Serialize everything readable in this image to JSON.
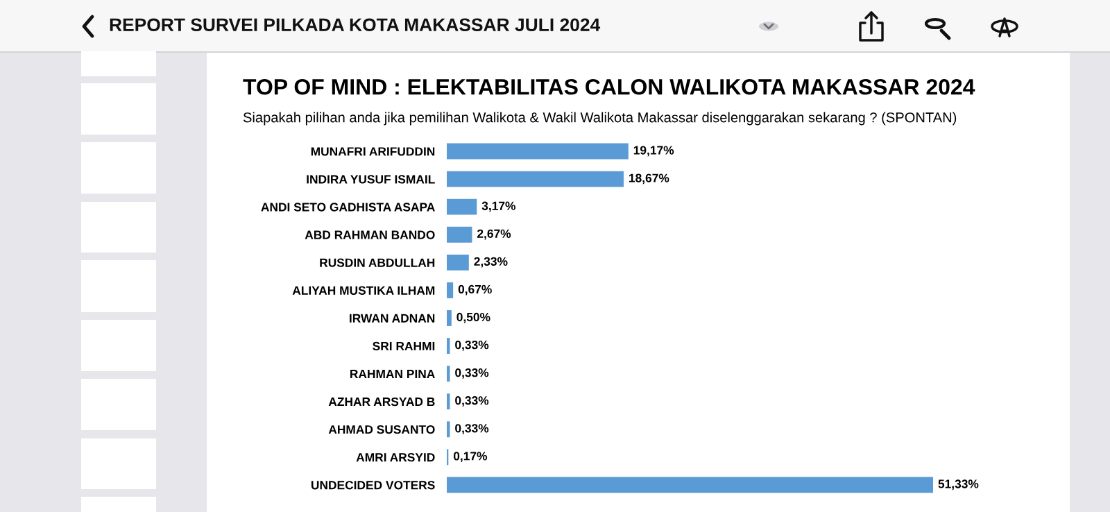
{
  "chart_data": {
    "type": "bar",
    "orientation": "horizontal",
    "title": "TOP OF MIND : ELEKTABILITAS CALON WALIKOTA MAKASSAR 2024",
    "subtitle": "Siapakah pilihan anda jika pemilihan Walikota & Wakil Walikota Makassar diselenggarakan sekarang ? (SPONTAN)",
    "annotations": [
      "REPORT SURVEI PILKADA KOTA MAKASSAR JULI 2024"
    ],
    "categories": [
      "MUNAFRI ARIFUDDIN",
      "INDIRA YUSUF ISMAIL",
      "ANDI SETO GADHISTA ASAPA",
      "ABD RAHMAN BANDO",
      "RUSDIN ABDULLAH",
      "ALIYAH MUSTIKA ILHAM",
      "IRWAN ADNAN",
      "SRI RAHMI",
      "RAHMAN PINA",
      "AZHAR ARSYAD B",
      "AHMAD SUSANTO",
      "AMRI ARSYID",
      "UNDECIDED VOTERS"
    ],
    "values": [
      19.17,
      18.67,
      3.17,
      2.67,
      2.33,
      0.67,
      0.5,
      0.33,
      0.33,
      0.33,
      0.33,
      0.17,
      51.33
    ],
    "value_labels": [
      "19,17%",
      "18,67%",
      "3,17%",
      "2,67%",
      "2,33%",
      "0,67%",
      "0,50%",
      "0,33%",
      "0,33%",
      "0,33%",
      "0,33%",
      "0,17%",
      "51,33%"
    ],
    "color": "#5b9bd5",
    "grid": false,
    "legend": false
  }
}
